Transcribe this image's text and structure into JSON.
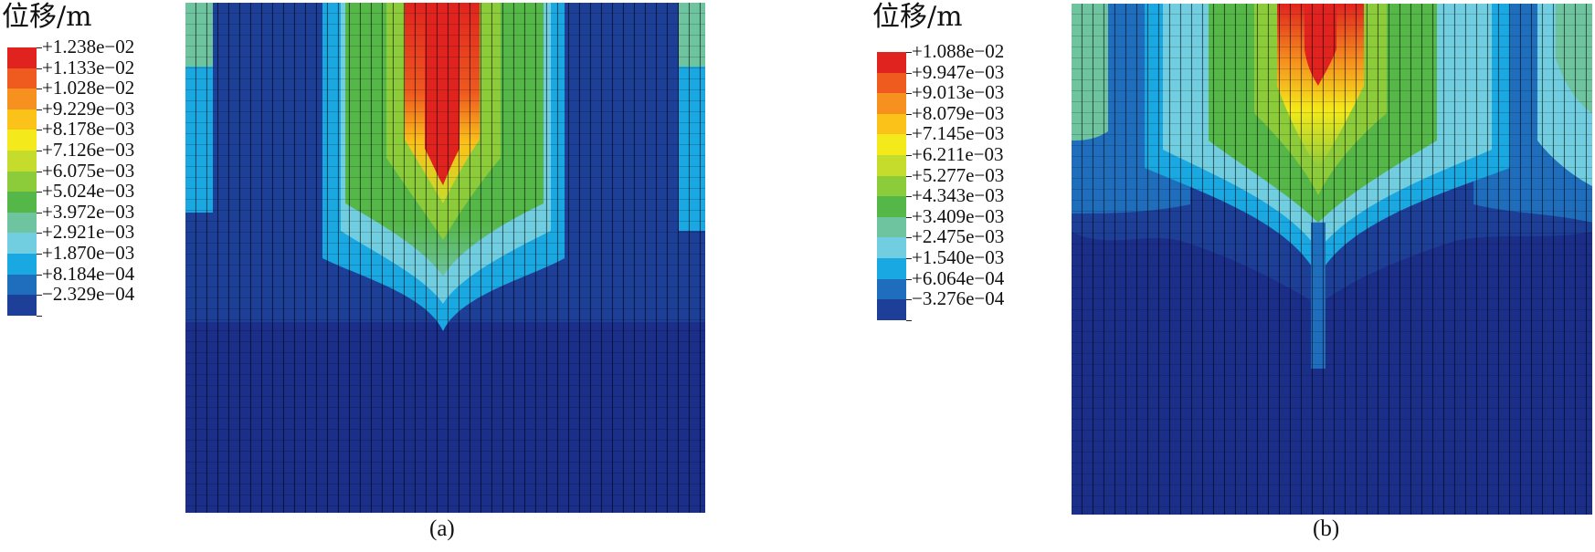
{
  "panels": [
    {
      "legend_title": "位移/m",
      "caption": "(a)",
      "legend": [
        {
          "label": "+1.238e−02",
          "color": "#e0231f"
        },
        {
          "label": "+1.133e−02",
          "color": "#ef5a1f"
        },
        {
          "label": "+1.028e−02",
          "color": "#f6901e"
        },
        {
          "label": "+9.229e−03",
          "color": "#fbc21a"
        },
        {
          "label": "+8.178e−03",
          "color": "#f4ea1b"
        },
        {
          "label": "+7.126e−03",
          "color": "#c5dc2c"
        },
        {
          "label": "+6.075e−03",
          "color": "#8ccb3a"
        },
        {
          "label": "+5.024e−03",
          "color": "#55b748"
        },
        {
          "label": "+3.972e−03",
          "color": "#6fc4a0"
        },
        {
          "label": "+2.921e−03",
          "color": "#71cde0"
        },
        {
          "label": "+1.870e−03",
          "color": "#19a8e2"
        },
        {
          "label": "+8.184e−04",
          "color": "#1f6ebd"
        },
        {
          "label": "−2.329e−04",
          "color": "#1d3f98"
        }
      ]
    },
    {
      "legend_title": "位移/m",
      "caption": "(b)",
      "legend": [
        {
          "label": "+1.088e−02",
          "color": "#e0231f"
        },
        {
          "label": "+9.947e−03",
          "color": "#ef5a1f"
        },
        {
          "label": "+9.013e−03",
          "color": "#f6901e"
        },
        {
          "label": "+8.079e−03",
          "color": "#fbc21a"
        },
        {
          "label": "+7.145e−03",
          "color": "#f4ea1b"
        },
        {
          "label": "+6.211e−03",
          "color": "#c5dc2c"
        },
        {
          "label": "+5.277e−03",
          "color": "#8ccb3a"
        },
        {
          "label": "+4.343e−03",
          "color": "#55b748"
        },
        {
          "label": "+3.409e−03",
          "color": "#6fc4a0"
        },
        {
          "label": "+2.475e−03",
          "color": "#71cde0"
        },
        {
          "label": "+1.540e−03",
          "color": "#19a8e2"
        },
        {
          "label": "+6.064e−04",
          "color": "#1f6ebd"
        },
        {
          "label": "−3.276e−04",
          "color": "#1d3f98"
        }
      ]
    }
  ]
}
